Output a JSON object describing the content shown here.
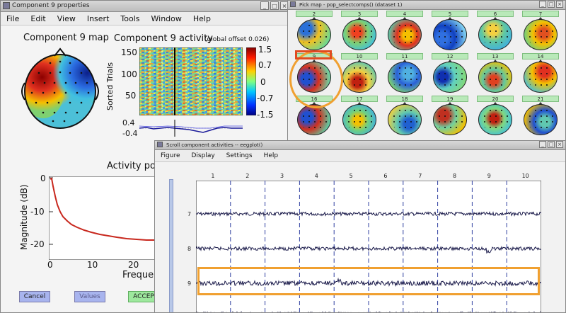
{
  "left_window": {
    "title": "Component 9 properties",
    "menu": [
      "File",
      "Edit",
      "View",
      "Insert",
      "Tools",
      "Window",
      "Help"
    ],
    "map_title": "Component 9 map",
    "activity_title": "Component 9 activity",
    "activity_note": "(global offset 0.026)",
    "sorted_trials_label": "Sorted Trials",
    "trial_ticks": [
      "150",
      "100",
      "50"
    ],
    "erp_ticks": [
      "0.4",
      "-0.4"
    ],
    "colorbar_ticks": [
      "1.5",
      "0.7",
      "0",
      "-0.7",
      "-1.5"
    ],
    "spectrum_title": "Activity pow",
    "spectrum_ylabel": "Magnitude (dB)",
    "spectrum_xlabel": "Freque",
    "spectrum_yticks": [
      "0",
      "-10",
      "-20"
    ],
    "spectrum_xticks": [
      "0",
      "10",
      "20"
    ],
    "buttons": {
      "cancel": "Cancel",
      "values": "Values",
      "accept": "ACCEP"
    },
    "colors": {
      "spectrum_line": "#c8281e",
      "highlight": "#f0a030"
    }
  },
  "right_window": {
    "title": "Pick map - pop_selectcomps() (dataset 1)",
    "component_numbers": [
      "2",
      "3",
      "4",
      "5",
      "6",
      "7",
      "9",
      "10",
      "11",
      "12",
      "13",
      "14",
      "16",
      "17",
      "18",
      "19",
      "20",
      "21"
    ],
    "highlighted_component": "9"
  },
  "bottom_window": {
    "title": "Scroll component activities -- eegplot()",
    "menu": [
      "Figure",
      "Display",
      "Settings",
      "Help"
    ],
    "epoch_labels": [
      "1",
      "2",
      "3",
      "4",
      "5",
      "6",
      "7",
      "8",
      "9",
      "10"
    ],
    "trace_labels": [
      "7",
      "8",
      "9"
    ],
    "highlighted_trace": "9"
  }
}
